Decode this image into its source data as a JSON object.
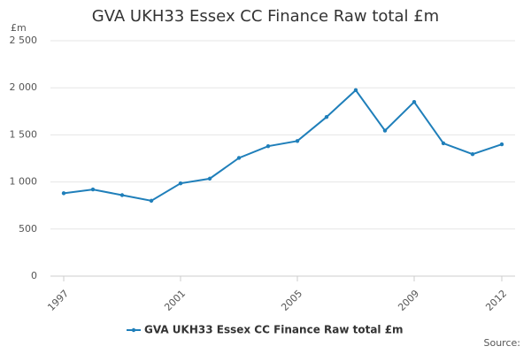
{
  "chart_data": {
    "type": "line",
    "title": "GVA UKH33 Essex CC Finance Raw total £m",
    "y_label": "£m",
    "source": "Source:",
    "x": [
      1997,
      1998,
      1999,
      2000,
      2001,
      2002,
      2003,
      2004,
      2005,
      2006,
      2007,
      2008,
      2009,
      2010,
      2011,
      2012
    ],
    "series": [
      {
        "name": "GVA UKH33 Essex CC Finance Raw total £m",
        "color": "#1f7fba",
        "values": [
          880,
          920,
          860,
          800,
          985,
          1035,
          1255,
          1380,
          1435,
          1690,
          1975,
          1545,
          1850,
          1410,
          1295,
          1400
        ]
      }
    ],
    "xlim": [
      1997,
      2012
    ],
    "xticks": [
      1997,
      2001,
      2005,
      2009,
      2012
    ],
    "ylim": [
      0,
      2500
    ],
    "yticks": [
      0,
      500,
      {
        "value": 1000,
        "label": "1 000"
      },
      {
        "value": 1500,
        "label": "1 500"
      },
      {
        "value": 2000,
        "label": "2 000"
      },
      {
        "value": 2500,
        "label": "2 500"
      }
    ],
    "grid": true
  }
}
